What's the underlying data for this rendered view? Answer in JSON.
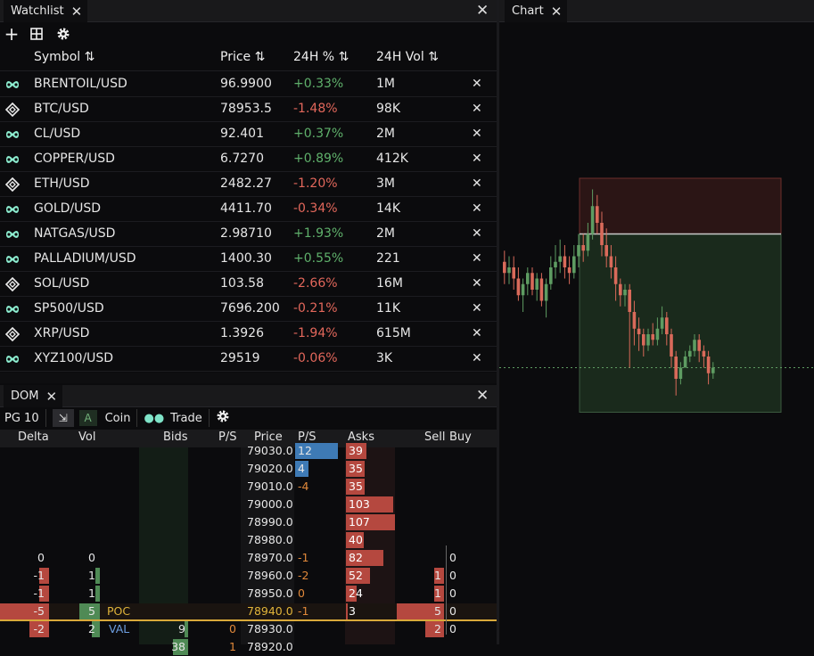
{
  "watchlist": {
    "tab_label": "Watchlist",
    "headers": {
      "symbol": "Symbol",
      "price": "Price",
      "pct": "24H %",
      "vol": "24H Vol"
    },
    "rows": [
      {
        "symbol": "BRENTOIL/USD",
        "price": "96.9900",
        "pct": "+0.33%",
        "vol": "1M",
        "dir": "pos",
        "icon": "hyperliquid-icon"
      },
      {
        "symbol": "BTC/USD",
        "price": "78953.5",
        "pct": "-1.48%",
        "vol": "98K",
        "dir": "neg",
        "icon": "binance-icon"
      },
      {
        "symbol": "CL/USD",
        "price": "92.401",
        "pct": "+0.37%",
        "vol": "2M",
        "dir": "pos",
        "icon": "hyperliquid-icon"
      },
      {
        "symbol": "COPPER/USD",
        "price": "6.7270",
        "pct": "+0.89%",
        "vol": "412K",
        "dir": "pos",
        "icon": "hyperliquid-icon"
      },
      {
        "symbol": "ETH/USD",
        "price": "2482.27",
        "pct": "-1.20%",
        "vol": "3M",
        "dir": "neg",
        "icon": "binance-icon"
      },
      {
        "symbol": "GOLD/USD",
        "price": "4411.70",
        "pct": "-0.34%",
        "vol": "14K",
        "dir": "neg",
        "icon": "hyperliquid-icon"
      },
      {
        "symbol": "NATGAS/USD",
        "price": "2.98710",
        "pct": "+1.93%",
        "vol": "2M",
        "dir": "pos",
        "icon": "hyperliquid-icon"
      },
      {
        "symbol": "PALLADIUM/USD",
        "price": "1400.30",
        "pct": "+0.55%",
        "vol": "221",
        "dir": "pos",
        "icon": "hyperliquid-icon"
      },
      {
        "symbol": "SOL/USD",
        "price": "103.58",
        "pct": "-2.66%",
        "vol": "16M",
        "dir": "neg",
        "icon": "binance-icon"
      },
      {
        "symbol": "SP500/USD",
        "price": "7696.200",
        "pct": "-0.21%",
        "vol": "11K",
        "dir": "neg",
        "icon": "hyperliquid-icon"
      },
      {
        "symbol": "XRP/USD",
        "price": "1.3926",
        "pct": "-1.94%",
        "vol": "615M",
        "dir": "neg",
        "icon": "binance-icon"
      },
      {
        "symbol": "XYZ100/USD",
        "price": "29519",
        "pct": "-0.06%",
        "vol": "3K",
        "dir": "neg",
        "icon": "hyperliquid-icon"
      }
    ]
  },
  "chart": {
    "tab_label": "Chart",
    "candles": [
      [
        4.5,
        3.5,
        5.5,
        2.5
      ],
      [
        3.5,
        4.0,
        5.0,
        2.5
      ],
      [
        4.0,
        3.0,
        5.0,
        2.0
      ],
      [
        3.0,
        1.5,
        4.0,
        1.0
      ],
      [
        1.5,
        2.5,
        3.0,
        0.0
      ],
      [
        2.5,
        3.5,
        4.0,
        1.5
      ],
      [
        3.5,
        2.0,
        4.0,
        1.5
      ],
      [
        2.0,
        3.0,
        3.5,
        1.0
      ],
      [
        3.0,
        1.0,
        3.5,
        0.5
      ],
      [
        1.0,
        2.5,
        3.0,
        -0.5
      ],
      [
        2.5,
        4.0,
        5.0,
        2.0
      ],
      [
        4.0,
        4.5,
        6.0,
        3.0
      ],
      [
        4.5,
        5.0,
        6.5,
        3.5
      ],
      [
        5.0,
        4.0,
        6.0,
        3.0
      ],
      [
        4.0,
        3.5,
        5.0,
        2.5
      ],
      [
        3.5,
        5.0,
        6.0,
        3.0
      ],
      [
        5.0,
        6.0,
        7.0,
        4.0
      ],
      [
        6.0,
        5.5,
        7.0,
        4.5
      ],
      [
        5.5,
        7.0,
        8.0,
        5.0
      ],
      [
        7.0,
        9.5,
        11.0,
        6.5
      ],
      [
        9.5,
        8.0,
        10.5,
        7.0
      ],
      [
        8.0,
        6.0,
        9.0,
        5.0
      ],
      [
        6.0,
        5.0,
        7.5,
        4.0
      ],
      [
        5.0,
        4.0,
        6.0,
        3.0
      ],
      [
        4.0,
        2.5,
        5.0,
        1.0
      ],
      [
        2.5,
        1.5,
        3.0,
        0.5
      ],
      [
        1.5,
        2.0,
        2.5,
        0.5
      ],
      [
        2.0,
        0.0,
        2.5,
        -5.0
      ],
      [
        0.0,
        -1.5,
        1.0,
        -3.0
      ],
      [
        -1.5,
        -2.0,
        -0.5,
        -3.5
      ],
      [
        -2.0,
        -3.0,
        -1.5,
        -4.0
      ],
      [
        -3.0,
        -2.0,
        -1.5,
        -3.5
      ],
      [
        -2.0,
        -2.5,
        -1.0,
        -3.0
      ],
      [
        -2.5,
        -1.5,
        -0.5,
        -3.0
      ],
      [
        -1.5,
        -0.5,
        0.5,
        -2.0
      ],
      [
        -0.5,
        -2.0,
        0.0,
        -3.0
      ],
      [
        -2.0,
        -4.0,
        -1.5,
        -5.0
      ],
      [
        -4.0,
        -6.0,
        -3.5,
        -7.5
      ],
      [
        -6.0,
        -5.0,
        -4.5,
        -6.5
      ],
      [
        -5.0,
        -4.0,
        -3.5,
        -5.0
      ],
      [
        -4.0,
        -3.5,
        -3.0,
        -4.5
      ],
      [
        -3.5,
        -2.5,
        -2.0,
        -4.0
      ],
      [
        -2.5,
        -3.5,
        -2.0,
        -4.5
      ],
      [
        -3.5,
        -4.0,
        -3.0,
        -5.0
      ],
      [
        -4.0,
        -5.5,
        -3.5,
        -6.5
      ],
      [
        -5.5,
        -5.0,
        -4.5,
        -6.0
      ]
    ],
    "price_line": -5.0,
    "zone_top": 12.0,
    "zone_mid": 7.0,
    "zone_bottom": -9.0,
    "colors": {
      "up": "#5e9c62",
      "down": "#d96a5a",
      "zone_red": "#2b1515",
      "zone_green": "#1a2a1c"
    }
  },
  "dom": {
    "tab_label": "DOM",
    "toolbar": {
      "page": "PG 10",
      "mode": "A",
      "coin": "Coin",
      "trade": "Trade"
    },
    "headers": {
      "delta": "Delta",
      "vol": "Vol",
      "bids": "Bids",
      "ps_bid": "P/S",
      "price": "Price",
      "ps_ask": "P/S",
      "asks": "Asks",
      "sell": "Sell",
      "buy": "Buy"
    },
    "rows": [
      {
        "price": "79030.0",
        "ps_ask": "12",
        "ask": "39",
        "ask_w": 0.42,
        "ps_blue": 0.95
      },
      {
        "price": "79020.0",
        "ps_ask": "4",
        "ask": "35",
        "ask_w": 0.38,
        "ps_blue": 0.3
      },
      {
        "price": "79010.0",
        "ps_ask": "-4",
        "ask": "35",
        "ask_w": 0.38
      },
      {
        "price": "79000.0",
        "ask": "103",
        "ask_w": 0.96
      },
      {
        "price": "78990.0",
        "ask": "107",
        "ask_w": 1.0
      },
      {
        "price": "78980.0",
        "ask": "40",
        "ask_w": 0.37
      },
      {
        "price": "78970.0",
        "delta": "0",
        "vol": "0",
        "ps_ask": "-1",
        "ask": "82",
        "ask_w": 0.77,
        "buy": "0"
      },
      {
        "price": "78960.0",
        "delta": "-1",
        "vol": "1",
        "ps_ask": "-2",
        "ask": "52",
        "ask_w": 0.49,
        "sell": "1",
        "buy": "0"
      },
      {
        "price": "78950.0",
        "delta": "-1",
        "vol": "1",
        "ps_ask": "0",
        "ask": "24",
        "ask_w": 0.22,
        "sell": "1",
        "buy": "0"
      },
      {
        "price": "78940.0",
        "delta": "-5",
        "vol": "5",
        "tag": "POC",
        "ps_ask": "-1",
        "ask": "3",
        "ask_w": 0.03,
        "sell": "5",
        "buy": "0",
        "highlight": "poc"
      },
      {
        "price": "78930.0",
        "delta": "-2",
        "vol": "2",
        "tag": "VAL",
        "bid": "9",
        "ps_bid": "0",
        "sell": "2",
        "buy": "0"
      },
      {
        "price": "78920.0",
        "bid": "38",
        "ps_bid": "1"
      }
    ]
  }
}
